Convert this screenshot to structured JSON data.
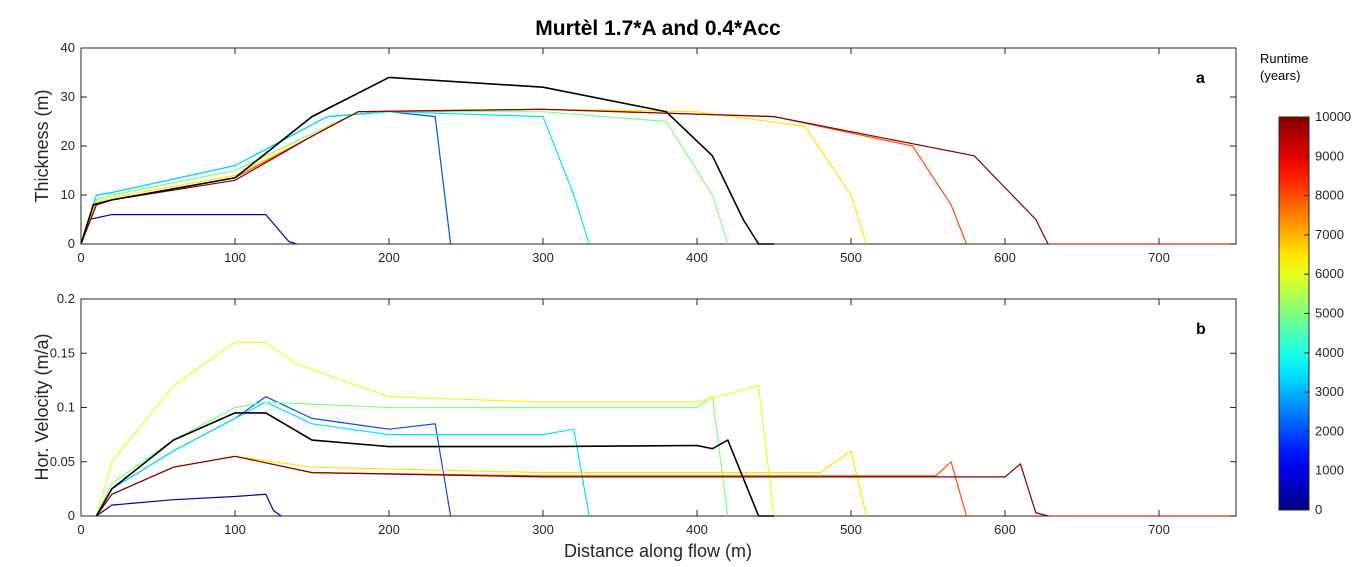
{
  "chart_data": [
    {
      "type": "line",
      "panel": "a",
      "title": "Murtèl 1.7*A and 0.4*Acc",
      "xlabel": "",
      "ylabel": "Thickness (m)",
      "xlim": [
        0,
        750
      ],
      "ylim": [
        0,
        40
      ],
      "xticks": [
        0,
        100,
        200,
        300,
        400,
        500,
        600,
        700
      ],
      "yticks": [
        0,
        10,
        20,
        30,
        40
      ],
      "grid": false,
      "series": [
        {
          "runtime_years": 500,
          "x": [
            0,
            5,
            20,
            120,
            135,
            140
          ],
          "y": [
            0,
            5,
            6,
            6,
            0.5,
            0
          ]
        },
        {
          "runtime_years": 2000,
          "x": [
            0,
            10,
            20,
            100,
            130,
            160,
            200,
            230,
            240
          ],
          "y": [
            0,
            10,
            10.5,
            16,
            21,
            26,
            27,
            26,
            0
          ]
        },
        {
          "runtime_years": 3500,
          "x": [
            0,
            10,
            20,
            100,
            130,
            160,
            200,
            300,
            320,
            330
          ],
          "y": [
            0,
            10,
            10.5,
            16,
            21,
            26,
            27,
            26,
            10,
            0
          ]
        },
        {
          "runtime_years": 5000,
          "x": [
            0,
            10,
            20,
            100,
            140,
            180,
            200,
            300,
            380,
            410,
            420
          ],
          "y": [
            0,
            9,
            10,
            15,
            21,
            27,
            27,
            27,
            25,
            10,
            0
          ]
        },
        {
          "runtime_years": 6500,
          "x": [
            0,
            10,
            20,
            100,
            150,
            180,
            300,
            400,
            470,
            500,
            510
          ],
          "y": [
            0,
            8.5,
            9.5,
            14,
            22,
            27,
            27.5,
            27,
            24,
            10,
            0
          ]
        },
        {
          "runtime_years": 8000,
          "x": [
            0,
            10,
            20,
            100,
            150,
            180,
            300,
            450,
            540,
            565,
            575
          ],
          "y": [
            0,
            8,
            9,
            13.5,
            22,
            27,
            27.5,
            26,
            20,
            8,
            0
          ]
        },
        {
          "runtime_years": 10000,
          "x": [
            0,
            10,
            20,
            100,
            150,
            180,
            300,
            450,
            580,
            620,
            628
          ],
          "y": [
            0,
            8,
            9,
            13,
            22,
            27,
            27.5,
            26,
            18,
            5,
            0
          ]
        },
        {
          "runtime_years": null,
          "color": "#000000",
          "x": [
            0,
            8,
            20,
            100,
            150,
            200,
            300,
            380,
            410,
            430,
            440,
            450
          ],
          "y": [
            0,
            8,
            9,
            13.5,
            26,
            34,
            32,
            27,
            18,
            5,
            0,
            0
          ]
        }
      ]
    },
    {
      "type": "line",
      "panel": "b",
      "xlabel": "Distance along flow (m)",
      "ylabel": "Hor. Velocity (m/a)",
      "xlim": [
        0,
        750
      ],
      "ylim": [
        0,
        0.2
      ],
      "xticks": [
        0,
        100,
        200,
        300,
        400,
        500,
        600,
        700
      ],
      "yticks": [
        0,
        0.05,
        0.1,
        0.15,
        0.2
      ],
      "grid": false,
      "series": [
        {
          "runtime_years": 500,
          "x": [
            10,
            20,
            60,
            100,
            120,
            125,
            130
          ],
          "y": [
            0,
            0.01,
            0.015,
            0.018,
            0.02,
            0.005,
            0
          ]
        },
        {
          "runtime_years": 2000,
          "x": [
            10,
            20,
            60,
            100,
            120,
            150,
            200,
            230,
            240
          ],
          "y": [
            0,
            0.025,
            0.06,
            0.09,
            0.11,
            0.09,
            0.08,
            0.085,
            0
          ]
        },
        {
          "runtime_years": 3500,
          "x": [
            10,
            20,
            60,
            100,
            120,
            150,
            200,
            300,
            320,
            330
          ],
          "y": [
            0,
            0.025,
            0.06,
            0.09,
            0.105,
            0.085,
            0.075,
            0.075,
            0.08,
            0
          ]
        },
        {
          "runtime_years": 5000,
          "x": [
            10,
            20,
            60,
            100,
            120,
            200,
            300,
            400,
            410,
            420
          ],
          "y": [
            0,
            0.03,
            0.07,
            0.1,
            0.105,
            0.1,
            0.1,
            0.1,
            0.11,
            0
          ]
        },
        {
          "runtime_years": 6000,
          "x": [
            10,
            20,
            60,
            100,
            120,
            140,
            200,
            300,
            400,
            440,
            450
          ],
          "y": [
            0,
            0.05,
            0.12,
            0.16,
            0.16,
            0.14,
            0.11,
            0.105,
            0.105,
            0.12,
            0
          ]
        },
        {
          "runtime_years": 6500,
          "x": [
            10,
            20,
            60,
            100,
            150,
            300,
            480,
            500,
            510
          ],
          "y": [
            0,
            0.02,
            0.045,
            0.055,
            0.045,
            0.04,
            0.04,
            0.06,
            0
          ]
        },
        {
          "runtime_years": 8000,
          "x": [
            10,
            20,
            60,
            100,
            150,
            300,
            555,
            565,
            575
          ],
          "y": [
            0,
            0.02,
            0.045,
            0.055,
            0.04,
            0.037,
            0.037,
            0.05,
            0
          ]
        },
        {
          "runtime_years": 10000,
          "x": [
            10,
            20,
            60,
            100,
            150,
            300,
            600,
            610,
            620,
            628
          ],
          "y": [
            0,
            0.02,
            0.045,
            0.055,
            0.04,
            0.036,
            0.036,
            0.048,
            0.003,
            0
          ]
        },
        {
          "runtime_years": null,
          "color": "#000000",
          "x": [
            10,
            20,
            60,
            100,
            120,
            150,
            200,
            300,
            400,
            410,
            420,
            440,
            450
          ],
          "y": [
            0,
            0.025,
            0.07,
            0.095,
            0.095,
            0.07,
            0.064,
            0.064,
            0.065,
            0.062,
            0.07,
            0,
            0
          ]
        }
      ]
    }
  ],
  "panel_labels": {
    "a": "a",
    "b": "b"
  },
  "colorbar": {
    "title_line1": "Runtime",
    "title_line2": "(years)",
    "min": 0,
    "max": 10000,
    "ticks": [
      0,
      1000,
      2000,
      3000,
      4000,
      5000,
      6000,
      7000,
      8000,
      9000,
      10000
    ],
    "colormap": "jet"
  }
}
